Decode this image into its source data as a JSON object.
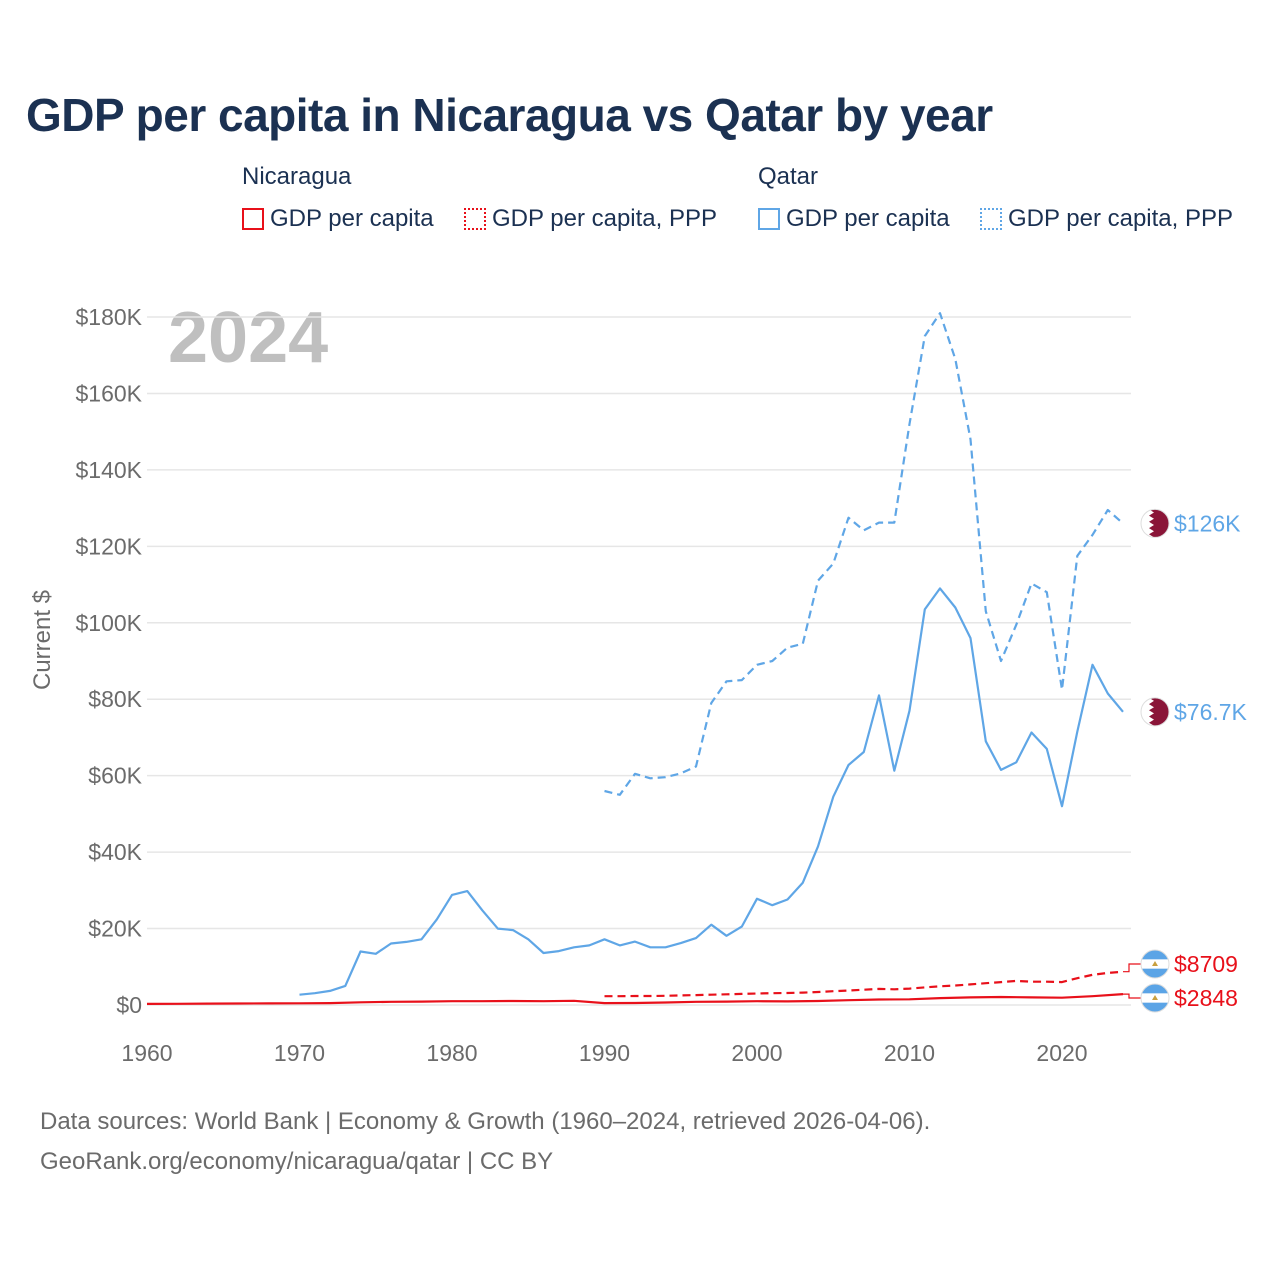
{
  "title": "GDP per capita in Nicaragua vs Qatar by year",
  "legend": {
    "groups": [
      {
        "name": "Nicaragua",
        "items": [
          "GDP per capita",
          "GDP per capita, PPP"
        ]
      },
      {
        "name": "Qatar",
        "items": [
          "GDP per capita",
          "GDP per capita, PPP"
        ]
      }
    ]
  },
  "footer": {
    "line1": "Data sources: World Bank | Economy & Growth (1960–2024, retrieved 2026-04-06).",
    "line2": "GeoRank.org/economy/nicaragua/qatar | CC BY"
  },
  "colors": {
    "nicaragua": "#e8101a",
    "qatar": "#5fa6e6",
    "grid": "#e6e6e6",
    "axis_text": "#6b6b6b",
    "year_watermark": "#bfbfbf"
  },
  "chart_data": {
    "type": "line",
    "title": "GDP per capita in Nicaragua vs Qatar by year",
    "year_label": "2024",
    "xlabel": "",
    "ylabel": "Current $",
    "xlim": [
      1960,
      2024
    ],
    "ylim": [
      0,
      180000
    ],
    "x_ticks": [
      1960,
      1970,
      1980,
      1990,
      2000,
      2010,
      2020
    ],
    "y_ticks": [
      {
        "value": 0,
        "label": "$0"
      },
      {
        "value": 20000,
        "label": "$20K"
      },
      {
        "value": 40000,
        "label": "$40K"
      },
      {
        "value": 60000,
        "label": "$60K"
      },
      {
        "value": 80000,
        "label": "$80K"
      },
      {
        "value": 100000,
        "label": "$100K"
      },
      {
        "value": 120000,
        "label": "$120K"
      },
      {
        "value": 140000,
        "label": "$140K"
      },
      {
        "value": 160000,
        "label": "$160K"
      },
      {
        "value": 180000,
        "label": "$180K"
      }
    ],
    "series": [
      {
        "name": "Qatar GDP per capita, PPP",
        "country": "Qatar",
        "indicator": "GDP per capita, PPP",
        "style": "dashed",
        "color": "#5fa6e6",
        "end_label": "$126K",
        "flag": "qatar-flag-icon",
        "x": [
          1990,
          1991,
          1992,
          1993,
          1994,
          1995,
          1996,
          1997,
          1998,
          1999,
          2000,
          2001,
          2002,
          2003,
          2004,
          2005,
          2006,
          2007,
          2008,
          2009,
          2010,
          2011,
          2012,
          2013,
          2014,
          2015,
          2016,
          2017,
          2018,
          2019,
          2020,
          2021,
          2022,
          2023,
          2024
        ],
        "values": [
          56000,
          55000,
          60500,
          59300,
          59600,
          60600,
          62400,
          79000,
          84700,
          85000,
          89000,
          90000,
          93500,
          94500,
          111000,
          115500,
          127500,
          124200,
          126200,
          126200,
          152000,
          175000,
          181000,
          169000,
          148000,
          103000,
          90000,
          99500,
          110300,
          108000,
          82500,
          117500,
          123000,
          129500,
          126000
        ]
      },
      {
        "name": "Qatar GDP per capita",
        "country": "Qatar",
        "indicator": "GDP per capita",
        "style": "solid",
        "color": "#5fa6e6",
        "end_label": "$76.7K",
        "flag": "qatar-flag-icon",
        "x": [
          1970,
          1971,
          1972,
          1973,
          1974,
          1975,
          1976,
          1977,
          1978,
          1979,
          1980,
          1981,
          1982,
          1983,
          1984,
          1985,
          1986,
          1987,
          1988,
          1989,
          1990,
          1991,
          1992,
          1993,
          1994,
          1995,
          1996,
          1997,
          1998,
          1999,
          2000,
          2001,
          2002,
          2003,
          2004,
          2005,
          2006,
          2007,
          2008,
          2009,
          2010,
          2011,
          2012,
          2013,
          2014,
          2015,
          2016,
          2017,
          2018,
          2019,
          2020,
          2021,
          2022,
          2023,
          2024
        ],
        "values": [
          2700,
          3100,
          3700,
          5000,
          14000,
          13400,
          16100,
          16500,
          17200,
          22400,
          28800,
          29800,
          24700,
          20000,
          19600,
          17200,
          13600,
          14100,
          15100,
          15600,
          17200,
          15600,
          16600,
          15100,
          15100,
          16200,
          17500,
          21000,
          18100,
          20500,
          27800,
          26100,
          27600,
          32000,
          41500,
          54500,
          62800,
          66200,
          81000,
          61300,
          77000,
          103500,
          109000,
          104000,
          96000,
          69000,
          61500,
          63500,
          71300,
          67000,
          52000,
          71500,
          89000,
          81500,
          76700
        ]
      },
      {
        "name": "Nicaragua GDP per capita, PPP",
        "country": "Nicaragua",
        "indicator": "GDP per capita, PPP",
        "style": "dashed",
        "color": "#e8101a",
        "end_label": "$8709",
        "flag": "nicaragua-flag-icon",
        "x": [
          1990,
          1991,
          1992,
          1993,
          1994,
          1995,
          1996,
          1997,
          1998,
          1999,
          2000,
          2001,
          2002,
          2003,
          2004,
          2005,
          2006,
          2007,
          2008,
          2009,
          2010,
          2011,
          2012,
          2013,
          2014,
          2015,
          2016,
          2017,
          2018,
          2019,
          2020,
          2021,
          2022,
          2023,
          2024
        ],
        "values": [
          2300,
          2300,
          2350,
          2350,
          2400,
          2500,
          2600,
          2700,
          2800,
          2900,
          3000,
          3100,
          3150,
          3250,
          3400,
          3600,
          3800,
          4000,
          4200,
          4100,
          4300,
          4600,
          4900,
          5100,
          5400,
          5700,
          6000,
          6300,
          6100,
          6100,
          6000,
          7000,
          7900,
          8400,
          8709
        ]
      },
      {
        "name": "Nicaragua GDP per capita",
        "country": "Nicaragua",
        "indicator": "GDP per capita",
        "style": "solid",
        "color": "#e8101a",
        "end_label": "$2848",
        "flag": "nicaragua-flag-icon",
        "x": [
          1960,
          1962,
          1964,
          1966,
          1968,
          1970,
          1972,
          1974,
          1976,
          1978,
          1980,
          1982,
          1984,
          1986,
          1988,
          1990,
          1992,
          1994,
          1996,
          1998,
          2000,
          2002,
          2004,
          2006,
          2008,
          2010,
          2012,
          2014,
          2016,
          2018,
          2020,
          2022,
          2024
        ],
        "values": [
          300,
          320,
          360,
          400,
          430,
          450,
          500,
          700,
          850,
          900,
          1000,
          1000,
          1050,
          1000,
          1100,
          500,
          520,
          650,
          850,
          900,
          1000,
          950,
          1050,
          1250,
          1450,
          1500,
          1800,
          2000,
          2100,
          2000,
          1900,
          2300,
          2848
        ]
      }
    ]
  }
}
